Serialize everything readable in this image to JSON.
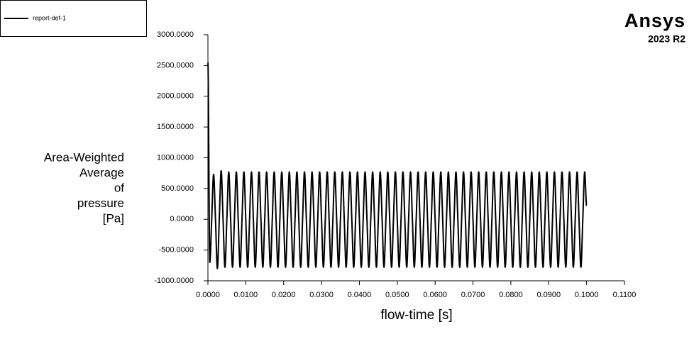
{
  "chart_data": {
    "type": "line",
    "x_label": "flow-time [s]",
    "y_label": [
      "Area-Weighted",
      "Average",
      "of",
      "pressure",
      "[Pa]"
    ],
    "xlim": [
      0,
      0.11
    ],
    "xticks": [
      {
        "value": 0,
        "label": "0.0000"
      },
      {
        "value": 0.01,
        "label": "0.0100"
      },
      {
        "value": 0.02,
        "label": "0.0200"
      },
      {
        "value": 0.03,
        "label": "0.0300"
      },
      {
        "value": 0.04,
        "label": "0.0400"
      },
      {
        "value": 0.05,
        "label": "0.0500"
      },
      {
        "value": 0.06,
        "label": "0.0600"
      },
      {
        "value": 0.07,
        "label": "0.0700"
      },
      {
        "value": 0.08,
        "label": "0.0800"
      },
      {
        "value": 0.09,
        "label": "0.0900"
      },
      {
        "value": 0.1,
        "label": "0.1000"
      },
      {
        "value": 0.11,
        "label": "0.1100"
      }
    ],
    "ylim": [
      -1000,
      3000
    ],
    "yticks": [
      {
        "value": -1000,
        "label": "-1000.0000"
      },
      {
        "value": -500,
        "label": "-500.0000"
      },
      {
        "value": 0,
        "label": "0.0000"
      },
      {
        "value": 500,
        "label": "500.0000"
      },
      {
        "value": 1000,
        "label": "1000.0000"
      },
      {
        "value": 1500,
        "label": "1500.0000"
      },
      {
        "value": 2000,
        "label": "2000.0000"
      },
      {
        "value": 2500,
        "label": "2500.0000"
      },
      {
        "value": 3000,
        "label": "3000.0000"
      }
    ],
    "legend": "top-left",
    "x": [
      0,
      0.0005,
      0.001,
      0.0015,
      0.002,
      0.0025,
      0.003,
      0.0035,
      0.004,
      0.0045,
      0.005,
      0.0055,
      0.006,
      0.0065,
      0.007,
      0.0075,
      0.008,
      0.0085,
      0.009,
      0.0095,
      0.01,
      0.0105,
      0.011,
      0.0115,
      0.012,
      0.0125,
      0.013,
      0.0135,
      0.014,
      0.0145,
      0.015,
      0.0155,
      0.016,
      0.0165,
      0.017,
      0.0175,
      0.018,
      0.0185,
      0.019,
      0.0195,
      0.02,
      0.0205,
      0.021,
      0.0215,
      0.022,
      0.0225,
      0.023,
      0.0235,
      0.024,
      0.0245,
      0.025,
      0.0255,
      0.026,
      0.0265,
      0.027,
      0.0275,
      0.028,
      0.0285,
      0.029,
      0.0295,
      0.03,
      0.0305,
      0.031,
      0.0315,
      0.032,
      0.0325,
      0.033,
      0.0335,
      0.034,
      0.0345,
      0.035,
      0.0355,
      0.036,
      0.0365,
      0.037,
      0.0375,
      0.038,
      0.0385,
      0.039,
      0.0395,
      0.04,
      0.0405,
      0.041,
      0.0415,
      0.042,
      0.0425,
      0.043,
      0.0435,
      0.044,
      0.0445,
      0.045,
      0.0455,
      0.046,
      0.0465,
      0.047,
      0.0475,
      0.048,
      0.0485,
      0.049,
      0.0495,
      0.05,
      0.0505,
      0.051,
      0.0515,
      0.052,
      0.0525,
      0.053,
      0.0535,
      0.054,
      0.0545,
      0.055,
      0.0555,
      0.056,
      0.0565,
      0.057,
      0.0575,
      0.058,
      0.0585,
      0.059,
      0.0595,
      0.06,
      0.0605,
      0.061,
      0.0615,
      0.062,
      0.0625,
      0.063,
      0.0635,
      0.064,
      0.0645,
      0.065,
      0.0655,
      0.066,
      0.0665,
      0.067,
      0.0675,
      0.068,
      0.0685,
      0.069,
      0.0695,
      0.07,
      0.0705,
      0.071,
      0.0715,
      0.072,
      0.0725,
      0.073,
      0.0735,
      0.074,
      0.0745,
      0.075,
      0.0755,
      0.076,
      0.0765,
      0.077,
      0.0775,
      0.078,
      0.0785,
      0.079,
      0.0795,
      0.08,
      0.0805,
      0.081,
      0.0815,
      0.082,
      0.0825,
      0.083,
      0.0835,
      0.084,
      0.0845,
      0.085,
      0.0855,
      0.086,
      0.0865,
      0.087,
      0.0875,
      0.088,
      0.0885,
      0.089,
      0.0895,
      0.09,
      0.0905,
      0.091,
      0.0915,
      0.092,
      0.0925,
      0.093,
      0.0935,
      0.094,
      0.0945,
      0.095,
      0.0955,
      0.096,
      0.0965,
      0.097,
      0.0975,
      0.098,
      0.0985,
      0.099,
      0.0995,
      0.1
    ],
    "series": [
      {
        "name": "report-def-1",
        "color": "#000000",
        "values": [
          2550,
          -700,
          0,
          730,
          0,
          -800,
          0,
          790,
          0,
          -780,
          0,
          770,
          0,
          -780,
          0,
          770,
          0,
          -780,
          0,
          770,
          0,
          -780,
          0,
          770,
          0,
          -780,
          0,
          770,
          0,
          -780,
          0,
          770,
          0,
          -780,
          0,
          770,
          0,
          -780,
          0,
          770,
          0,
          -780,
          0,
          770,
          0,
          -780,
          0,
          770,
          0,
          -780,
          0,
          770,
          0,
          -780,
          0,
          770,
          0,
          -780,
          0,
          770,
          0,
          -780,
          0,
          770,
          0,
          -780,
          0,
          770,
          0,
          -780,
          0,
          770,
          0,
          -780,
          0,
          770,
          0,
          -780,
          0,
          770,
          0,
          -780,
          0,
          770,
          0,
          -780,
          0,
          770,
          0,
          -780,
          0,
          770,
          0,
          -780,
          0,
          770,
          0,
          -780,
          0,
          770,
          0,
          -780,
          0,
          770,
          0,
          -780,
          0,
          770,
          0,
          -780,
          0,
          770,
          0,
          -780,
          0,
          770,
          0,
          -780,
          0,
          770,
          0,
          -780,
          0,
          770,
          0,
          -780,
          0,
          770,
          0,
          -780,
          0,
          770,
          0,
          -780,
          0,
          770,
          0,
          -780,
          0,
          770,
          0,
          -780,
          0,
          770,
          0,
          -780,
          0,
          770,
          0,
          -780,
          0,
          770,
          0,
          -780,
          0,
          770,
          0,
          -780,
          0,
          770,
          0,
          -780,
          0,
          770,
          0,
          -780,
          0,
          770,
          0,
          -780,
          0,
          770,
          0,
          -780,
          0,
          770,
          0,
          -780,
          0,
          770,
          0,
          -780,
          0,
          770,
          0,
          -780,
          0,
          770,
          0,
          -780,
          0,
          770,
          0,
          -780,
          0,
          770,
          0,
          -780,
          0,
          770,
          220
        ]
      }
    ]
  },
  "logo": {
    "name": "Ansys",
    "version": "2023 R2"
  }
}
